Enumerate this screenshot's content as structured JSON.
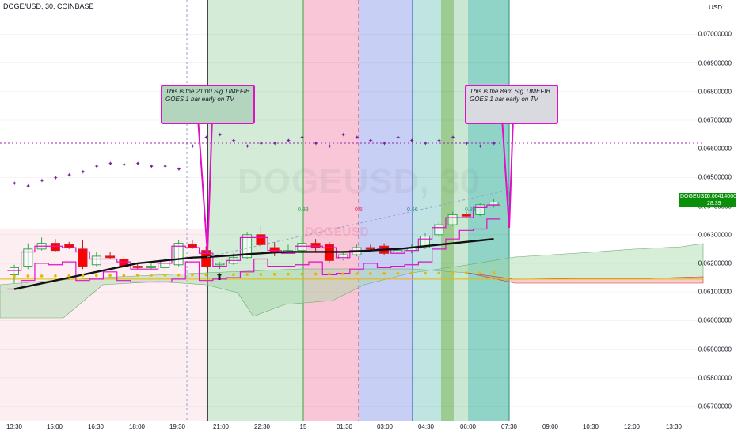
{
  "header": {
    "title": "DOGE/USD, 30, COINBASE"
  },
  "price_axis": {
    "unit": "USD",
    "ticks": [
      "0.07000000",
      "0.06900000",
      "0.06800000",
      "0.06700000",
      "0.06600000",
      "0.06500000",
      "0.06400000",
      "0.06300000",
      "0.06200000",
      "0.06100000",
      "0.06000000",
      "0.05900000",
      "0.05800000",
      "0.05700000"
    ]
  },
  "time_axis": {
    "ticks": [
      "13:30",
      "15:00",
      "16:30",
      "18:00",
      "19:30",
      "21:00",
      "22:30",
      "15",
      "01:30",
      "03:00",
      "04:30",
      "06:00",
      "07:30",
      "09:00",
      "10:30",
      "12:00",
      "13:30"
    ]
  },
  "last_price": {
    "symbol": "DOGEUSD",
    "value": "0.06414000",
    "timer": "28:39",
    "color": "#0a8f0a"
  },
  "watermark": {
    "symbol": "DOGEUSD",
    "interval": "30",
    "secondary": "DOGEUSD"
  },
  "fib_labels": [
    {
      "text": "0.33",
      "color": "#2e9e3e"
    },
    {
      "text": "0.5",
      "color": "#e91e63"
    },
    {
      "text": "0.66",
      "color": "#2e7d9e"
    },
    {
      "text": "0.88",
      "color": "#2e9e8e"
    }
  ],
  "callouts": [
    {
      "text": "This is the 21:00 Sig TIMEFIB GOES 1 bar early on TV",
      "bg": "#b3d4bd"
    },
    {
      "text": "This is the 8am  Sig TIMEFIB GOES 1 bar early on TV",
      "bg": "#d9dadf"
    }
  ],
  "arrow_glyph": "⬆",
  "colors": {
    "up": "#2ea84a",
    "down": "#ff0000",
    "ma": "#111111",
    "band": "#e010c8",
    "dots": "#e6b800",
    "cloud_green": "#a5d6a7",
    "cloud_red": "#e57373"
  },
  "chart_data": {
    "type": "candlestick",
    "symbol": "DOGE/USD",
    "interval": "30",
    "ylim": [
      0.0565,
      0.0712
    ],
    "candles": [
      {
        "o": 0.0616,
        "h": 0.06195,
        "l": 0.0613,
        "c": 0.06185
      },
      {
        "o": 0.0619,
        "h": 0.0627,
        "l": 0.0618,
        "c": 0.0625
      },
      {
        "o": 0.0625,
        "h": 0.0629,
        "l": 0.06245,
        "c": 0.0627
      },
      {
        "o": 0.0627,
        "h": 0.06285,
        "l": 0.0624,
        "c": 0.06245
      },
      {
        "o": 0.06265,
        "h": 0.06275,
        "l": 0.0625,
        "c": 0.06255
      },
      {
        "o": 0.0625,
        "h": 0.0628,
        "l": 0.0618,
        "c": 0.0619
      },
      {
        "o": 0.06195,
        "h": 0.0624,
        "l": 0.0619,
        "c": 0.06225
      },
      {
        "o": 0.06225,
        "h": 0.0624,
        "l": 0.06215,
        "c": 0.0622
      },
      {
        "o": 0.06215,
        "h": 0.06225,
        "l": 0.06185,
        "c": 0.0619
      },
      {
        "o": 0.0619,
        "h": 0.062,
        "l": 0.0618,
        "c": 0.06185
      },
      {
        "o": 0.06185,
        "h": 0.062,
        "l": 0.0618,
        "c": 0.0619
      },
      {
        "o": 0.06185,
        "h": 0.0622,
        "l": 0.0618,
        "c": 0.0621
      },
      {
        "o": 0.06195,
        "h": 0.0628,
        "l": 0.0619,
        "c": 0.0627
      },
      {
        "o": 0.06265,
        "h": 0.0628,
        "l": 0.0625,
        "c": 0.06255
      },
      {
        "o": 0.06245,
        "h": 0.0626,
        "l": 0.06185,
        "c": 0.0619
      },
      {
        "o": 0.06195,
        "h": 0.06205,
        "l": 0.0618,
        "c": 0.062
      },
      {
        "o": 0.062,
        "h": 0.06235,
        "l": 0.06195,
        "c": 0.0622
      },
      {
        "o": 0.0622,
        "h": 0.0631,
        "l": 0.06215,
        "c": 0.063
      },
      {
        "o": 0.063,
        "h": 0.0633,
        "l": 0.0625,
        "c": 0.06265
      },
      {
        "o": 0.06255,
        "h": 0.06275,
        "l": 0.06225,
        "c": 0.0624
      },
      {
        "o": 0.0624,
        "h": 0.06265,
        "l": 0.06235,
        "c": 0.06245
      },
      {
        "o": 0.06245,
        "h": 0.0629,
        "l": 0.06235,
        "c": 0.0627
      },
      {
        "o": 0.0627,
        "h": 0.06285,
        "l": 0.0624,
        "c": 0.06255
      },
      {
        "o": 0.06265,
        "h": 0.06275,
        "l": 0.062,
        "c": 0.0621
      },
      {
        "o": 0.06215,
        "h": 0.0624,
        "l": 0.0621,
        "c": 0.0623
      },
      {
        "o": 0.0623,
        "h": 0.06265,
        "l": 0.06225,
        "c": 0.06255
      },
      {
        "o": 0.06255,
        "h": 0.06265,
        "l": 0.0624,
        "c": 0.0625
      },
      {
        "o": 0.0626,
        "h": 0.0627,
        "l": 0.0623,
        "c": 0.06235
      },
      {
        "o": 0.0624,
        "h": 0.0626,
        "l": 0.0623,
        "c": 0.06245
      },
      {
        "o": 0.06245,
        "h": 0.06265,
        "l": 0.06235,
        "c": 0.06255
      },
      {
        "o": 0.06255,
        "h": 0.06305,
        "l": 0.0625,
        "c": 0.06295
      },
      {
        "o": 0.063,
        "h": 0.06345,
        "l": 0.0629,
        "c": 0.06335
      },
      {
        "o": 0.06335,
        "h": 0.0638,
        "l": 0.0633,
        "c": 0.0637
      },
      {
        "o": 0.0637,
        "h": 0.0638,
        "l": 0.0636,
        "c": 0.06365
      },
      {
        "o": 0.0637,
        "h": 0.0641,
        "l": 0.06365,
        "c": 0.06405
      },
      {
        "o": 0.06405,
        "h": 0.06425,
        "l": 0.06395,
        "c": 0.06414
      }
    ],
    "ma": [
      0.0611,
      0.0612,
      0.0613,
      0.0614,
      0.0615,
      0.0616,
      0.0617,
      0.0618,
      0.0619,
      0.062,
      0.06205,
      0.0621,
      0.06215,
      0.0622,
      0.06222,
      0.06225,
      0.06228,
      0.06232,
      0.06235,
      0.06238,
      0.0624,
      0.0624,
      0.0624,
      0.0624,
      0.0624,
      0.06242,
      0.06245,
      0.06248,
      0.0625,
      0.06255,
      0.0626,
      0.06265,
      0.0627,
      0.06275,
      0.0628,
      0.06285
    ],
    "psar": [
      0.0648,
      0.0647,
      0.0649,
      0.065,
      0.0651,
      0.0652,
      0.0654,
      0.0655,
      0.06545,
      0.0655,
      0.0654,
      0.0654,
      0.0653,
      0.0661,
      0.0664,
      0.0665,
      0.0663,
      0.0661,
      0.0662,
      0.0662,
      0.0663,
      0.0664,
      0.0662,
      0.0661,
      0.0665,
      0.0664,
      0.0663,
      0.0662,
      0.0664,
      0.0663,
      0.0662,
      0.0663,
      0.0664,
      0.0662,
      0.0661,
      0.0662
    ],
    "horizontal_levels": [
      {
        "value": 0.0662,
        "style": "dotted",
        "color": "#9c27b0"
      },
      {
        "value": 0.06414,
        "style": "solid",
        "color": "#3a9a3a"
      },
      {
        "value": 0.06145,
        "style": "solid",
        "color": "#e6b800"
      },
      {
        "value": 0.06135,
        "style": "solid",
        "color": "#7e7e7e"
      }
    ]
  }
}
